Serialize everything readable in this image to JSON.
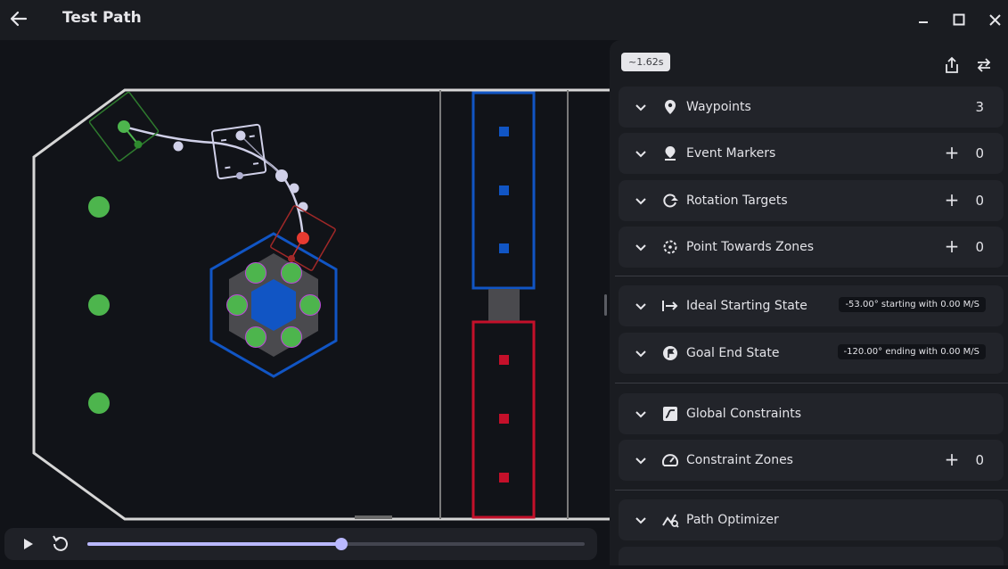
{
  "window": {
    "title": "Test Path"
  },
  "colors": {
    "accent": "#b9b8ff",
    "blue_alliance": "#1155c4",
    "red_alliance": "#c4102a",
    "path": "#d0d0e8",
    "green": "#4db54d"
  },
  "toolbar": {
    "time_estimate": "~1.62s"
  },
  "playback": {
    "progress": 0.51
  },
  "sections": {
    "waypoints": {
      "label": "Waypoints",
      "count": "3"
    },
    "event_markers": {
      "label": "Event Markers",
      "count": "0",
      "add": "+"
    },
    "rotation_targets": {
      "label": "Rotation Targets",
      "count": "0",
      "add": "+"
    },
    "point_towards_zones": {
      "label": "Point Towards Zones",
      "count": "0",
      "add": "+"
    },
    "ideal_starting_state": {
      "label": "Ideal Starting State",
      "badge": "-53.00° starting with 0.00 M/S"
    },
    "goal_end_state": {
      "label": "Goal End State",
      "badge": "-120.00° ending with 0.00 M/S"
    },
    "global_constraints": {
      "label": "Global Constraints"
    },
    "constraint_zones": {
      "label": "Constraint Zones",
      "count": "0",
      "add": "+"
    },
    "path_optimizer": {
      "label": "Path Optimizer"
    }
  }
}
